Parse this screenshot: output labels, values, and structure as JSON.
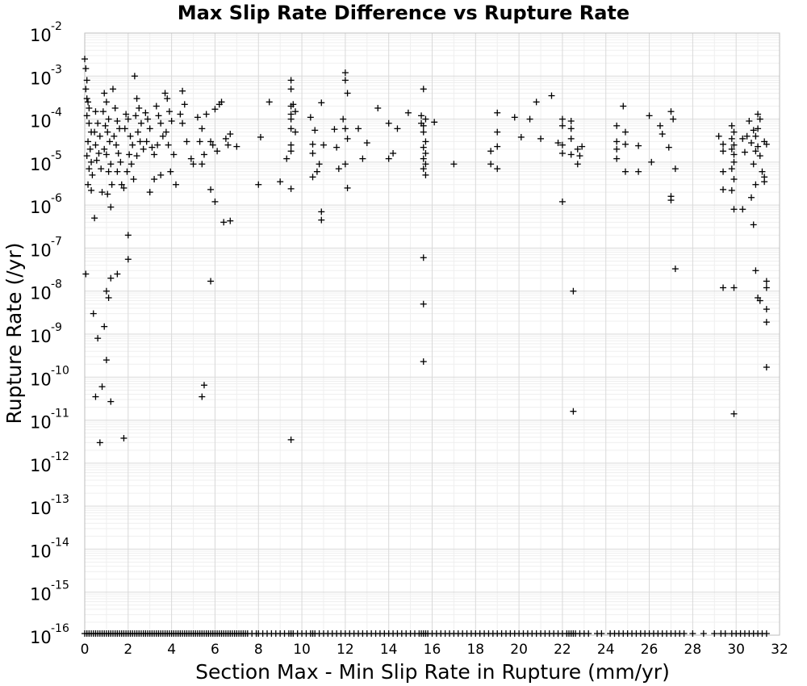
{
  "chart_data": {
    "type": "scatter",
    "title": "Max Slip Rate Difference vs Rupture Rate",
    "xlabel": "Section Max - Min Slip Rate in Rupture (mm/yr)",
    "ylabel": "Rupture Rate (/yr)",
    "xlim": [
      0,
      32
    ],
    "ylim": [
      1e-16,
      0.01
    ],
    "yscale": "log",
    "grid": true,
    "marker": "plus",
    "xticks": [
      "0",
      "2",
      "4",
      "6",
      "8",
      "10",
      "12",
      "14",
      "16",
      "18",
      "20",
      "22",
      "24",
      "26",
      "28",
      "30",
      "32"
    ],
    "yticks": [
      {
        "base": "10",
        "exp": "-16"
      },
      {
        "base": "10",
        "exp": "-15"
      },
      {
        "base": "10",
        "exp": "-14"
      },
      {
        "base": "10",
        "exp": "-13"
      },
      {
        "base": "10",
        "exp": "-12"
      },
      {
        "base": "10",
        "exp": "-11"
      },
      {
        "base": "10",
        "exp": "-10"
      },
      {
        "base": "10",
        "exp": "-9"
      },
      {
        "base": "10",
        "exp": "-8"
      },
      {
        "base": "10",
        "exp": "-7"
      },
      {
        "base": "10",
        "exp": "-6"
      },
      {
        "base": "10",
        "exp": "-5"
      },
      {
        "base": "10",
        "exp": "-4"
      },
      {
        "base": "10",
        "exp": "-3"
      },
      {
        "base": "10",
        "exp": "-2"
      }
    ],
    "points": [
      [
        0.0,
        0.0025
      ],
      [
        0.05,
        0.0015
      ],
      [
        0.1,
        0.0008
      ],
      [
        0.05,
        0.0005
      ],
      [
        0.1,
        0.0003
      ],
      [
        0.15,
        0.00025
      ],
      [
        0.2,
        0.00018
      ],
      [
        0.1,
        0.00012
      ],
      [
        0.2,
        8e-05
      ],
      [
        0.3,
        5e-05
      ],
      [
        0.15,
        3e-05
      ],
      [
        0.25,
        2e-05
      ],
      [
        0.1,
        1.4e-05
      ],
      [
        0.3,
        1e-05
      ],
      [
        0.2,
        7e-06
      ],
      [
        0.35,
        5e-06
      ],
      [
        0.15,
        3e-06
      ],
      [
        0.3,
        2.2e-06
      ],
      [
        0.5,
        0.00015
      ],
      [
        0.6,
        8e-05
      ],
      [
        0.45,
        5e-05
      ],
      [
        0.7,
        4e-05
      ],
      [
        0.5,
        2.5e-05
      ],
      [
        0.65,
        1.6e-05
      ],
      [
        0.55,
        1.1e-05
      ],
      [
        0.75,
        7e-06
      ],
      [
        0.8,
        2e-06
      ],
      [
        0.45,
        5e-07
      ],
      [
        0.9,
        0.0004
      ],
      [
        1.0,
        0.00025
      ],
      [
        0.85,
        0.00015
      ],
      [
        1.1,
        0.0001
      ],
      [
        0.95,
        7e-05
      ],
      [
        1.05,
        5e-05
      ],
      [
        1.15,
        3e-05
      ],
      [
        0.9,
        2e-05
      ],
      [
        1.0,
        1.5e-05
      ],
      [
        1.2,
        9e-06
      ],
      [
        1.1,
        6e-06
      ],
      [
        1.25,
        3e-06
      ],
      [
        1.05,
        1.8e-06
      ],
      [
        1.2,
        9e-07
      ],
      [
        1.3,
        0.0005
      ],
      [
        1.4,
        0.00018
      ],
      [
        1.5,
        9e-05
      ],
      [
        1.6,
        6e-05
      ],
      [
        1.35,
        4e-05
      ],
      [
        1.45,
        2.5e-05
      ],
      [
        1.55,
        1.6e-05
      ],
      [
        1.65,
        1e-05
      ],
      [
        1.5,
        6e-06
      ],
      [
        1.7,
        3e-06
      ],
      [
        1.8,
        2.5e-06
      ],
      [
        1.9,
        0.00013
      ],
      [
        2.0,
        0.0001
      ],
      [
        1.85,
        6e-05
      ],
      [
        2.1,
        4e-05
      ],
      [
        2.2,
        2.5e-05
      ],
      [
        2.05,
        1.5e-05
      ],
      [
        2.15,
        9e-06
      ],
      [
        1.95,
        6e-06
      ],
      [
        2.25,
        4e-06
      ],
      [
        2.3,
        0.001
      ],
      [
        2.4,
        0.0003
      ],
      [
        2.5,
        0.00018
      ],
      [
        2.35,
        0.00012
      ],
      [
        2.6,
        8e-05
      ],
      [
        2.45,
        5e-05
      ],
      [
        2.55,
        3e-05
      ],
      [
        2.7,
        2e-05
      ],
      [
        2.4,
        1.4e-05
      ],
      [
        2.8,
        0.00014
      ],
      [
        2.9,
        0.0001
      ],
      [
        3.0,
        6e-05
      ],
      [
        2.85,
        3e-05
      ],
      [
        3.1,
        2.2e-05
      ],
      [
        3.2,
        1.5e-05
      ],
      [
        3.3,
        0.0002
      ],
      [
        3.4,
        0.00012
      ],
      [
        3.5,
        8e-05
      ],
      [
        3.6,
        4e-05
      ],
      [
        3.35,
        2.5e-05
      ],
      [
        3.7,
        0.0004
      ],
      [
        3.8,
        0.0003
      ],
      [
        3.9,
        0.00015
      ],
      [
        4.0,
        9e-05
      ],
      [
        3.75,
        5e-05
      ],
      [
        3.85,
        2.5e-05
      ],
      [
        4.1,
        1.5e-05
      ],
      [
        3.95,
        6e-06
      ],
      [
        4.2,
        3e-06
      ],
      [
        3.5,
        5e-06
      ],
      [
        3.2,
        4e-06
      ],
      [
        3.0,
        2e-06
      ],
      [
        4.5,
        0.00045
      ],
      [
        4.6,
        0.00022
      ],
      [
        4.4,
        0.00013
      ],
      [
        4.5,
        8e-05
      ],
      [
        4.7,
        3e-05
      ],
      [
        4.9,
        1.2e-05
      ],
      [
        5.0,
        9e-06
      ],
      [
        5.2,
        0.00011
      ],
      [
        5.4,
        6e-05
      ],
      [
        5.3,
        3e-05
      ],
      [
        5.5,
        1.5e-05
      ],
      [
        5.4,
        9e-06
      ],
      [
        5.6,
        0.00013
      ],
      [
        5.8,
        3e-05
      ],
      [
        5.9,
        2.5e-05
      ],
      [
        6.0,
        0.00017
      ],
      [
        6.1,
        1.8e-05
      ],
      [
        6.2,
        0.00022
      ],
      [
        6.3,
        0.00025
      ],
      [
        6.5,
        3.5e-05
      ],
      [
        6.7,
        4.5e-05
      ],
      [
        6.6,
        2.5e-05
      ],
      [
        7.0,
        2.3e-05
      ],
      [
        6.4,
        4e-07
      ],
      [
        6.0,
        1.2e-06
      ],
      [
        5.8,
        2.3e-06
      ],
      [
        6.7,
        4.3e-07
      ],
      [
        0.05,
        2.5e-08
      ],
      [
        0.8,
        6e-11
      ],
      [
        1.2,
        2e-08
      ],
      [
        1.5,
        2.5e-08
      ],
      [
        1.0,
        1e-08
      ],
      [
        1.1,
        7e-09
      ],
      [
        0.4,
        3e-09
      ],
      [
        0.6,
        8e-10
      ],
      [
        0.9,
        1.5e-09
      ],
      [
        1.0,
        2.5e-10
      ],
      [
        2.0,
        2e-07
      ],
      [
        2.0,
        5.5e-08
      ],
      [
        5.8,
        1.7e-08
      ],
      [
        5.5,
        6.5e-11
      ],
      [
        5.4,
        3.5e-11
      ],
      [
        0.5,
        3.5e-11
      ],
      [
        1.2,
        2.7e-11
      ],
      [
        0.7,
        3e-12
      ],
      [
        1.8,
        3.8e-12
      ],
      [
        8.0,
        3e-06
      ],
      [
        8.1,
        3.8e-05
      ],
      [
        8.5,
        0.00025
      ],
      [
        9.0,
        3.5e-06
      ],
      [
        9.3,
        1.2e-05
      ],
      [
        9.5,
        0.0008
      ],
      [
        9.5,
        0.0005
      ],
      [
        9.5,
        0.0002
      ],
      [
        9.5,
        0.00013
      ],
      [
        9.5,
        0.0001
      ],
      [
        9.5,
        6e-05
      ],
      [
        9.5,
        2.5e-05
      ],
      [
        9.5,
        1.8e-05
      ],
      [
        9.5,
        2.4e-06
      ],
      [
        9.6,
        0.00022
      ],
      [
        9.7,
        0.00015
      ],
      [
        9.7,
        5e-05
      ],
      [
        9.5,
        3.5e-12
      ],
      [
        10.4,
        0.00011
      ],
      [
        10.6,
        5.5e-05
      ],
      [
        10.5,
        2.6e-05
      ],
      [
        10.5,
        1.6e-05
      ],
      [
        10.5,
        4.5e-06
      ],
      [
        10.7,
        6e-06
      ],
      [
        10.8,
        9e-06
      ],
      [
        10.9,
        0.00024
      ],
      [
        11.0,
        2.5e-05
      ],
      [
        10.9,
        7e-07
      ],
      [
        10.9,
        4.5e-07
      ],
      [
        11.5,
        5.8e-05
      ],
      [
        11.6,
        2.2e-05
      ],
      [
        11.7,
        7e-06
      ],
      [
        12.0,
        0.0012
      ],
      [
        12.0,
        0.0008
      ],
      [
        12.1,
        0.0004
      ],
      [
        11.9,
        0.0001
      ],
      [
        12.0,
        6e-05
      ],
      [
        12.1,
        3.5e-05
      ],
      [
        12.0,
        9e-06
      ],
      [
        12.1,
        2.5e-06
      ],
      [
        12.6,
        6e-05
      ],
      [
        12.8,
        1.2e-05
      ],
      [
        13.0,
        2.8e-05
      ],
      [
        13.5,
        0.00018
      ],
      [
        14.0,
        8e-05
      ],
      [
        14.2,
        1.6e-05
      ],
      [
        14.0,
        1.2e-05
      ],
      [
        14.4,
        6e-05
      ],
      [
        14.9,
        0.00014
      ],
      [
        15.5,
        0.00012
      ],
      [
        15.6,
        0.0005
      ],
      [
        15.7,
        0.0001
      ],
      [
        15.6,
        7e-05
      ],
      [
        15.6,
        5e-05
      ],
      [
        15.7,
        3e-05
      ],
      [
        15.6,
        2.2e-05
      ],
      [
        15.7,
        1.6e-05
      ],
      [
        15.6,
        1.2e-05
      ],
      [
        15.7,
        9e-06
      ],
      [
        15.6,
        7e-06
      ],
      [
        15.7,
        5e-06
      ],
      [
        15.5,
        8e-05
      ],
      [
        16.1,
        8.5e-05
      ],
      [
        15.6,
        6e-08
      ],
      [
        15.6,
        5e-09
      ],
      [
        15.6,
        2.3e-10
      ],
      [
        17.0,
        9e-06
      ],
      [
        18.7,
        1.8e-05
      ],
      [
        18.7,
        9e-06
      ],
      [
        19.0,
        0.00014
      ],
      [
        19.0,
        5e-05
      ],
      [
        19.0,
        2.3e-05
      ],
      [
        19.0,
        7e-06
      ],
      [
        19.8,
        0.00011
      ],
      [
        20.1,
        3.8e-05
      ],
      [
        20.5,
        0.0001
      ],
      [
        20.8,
        0.00025
      ],
      [
        21.0,
        3.5e-05
      ],
      [
        21.5,
        0.00035
      ],
      [
        21.8,
        2.8e-05
      ],
      [
        22.0,
        0.0001
      ],
      [
        22.0,
        7e-05
      ],
      [
        22.0,
        2.5e-05
      ],
      [
        22.0,
        1.6e-05
      ],
      [
        22.0,
        1.2e-06
      ],
      [
        22.4,
        9e-05
      ],
      [
        22.4,
        6e-05
      ],
      [
        22.4,
        3.5e-05
      ],
      [
        22.4,
        1.5e-05
      ],
      [
        22.5,
        1e-08
      ],
      [
        22.5,
        1.6e-11
      ],
      [
        22.7,
        2e-05
      ],
      [
        22.8,
        1.4e-05
      ],
      [
        22.7,
        9e-06
      ],
      [
        22.9,
        2.3e-05
      ],
      [
        24.5,
        7e-05
      ],
      [
        24.5,
        3e-05
      ],
      [
        24.5,
        2e-05
      ],
      [
        24.5,
        1.2e-05
      ],
      [
        24.8,
        0.0002
      ],
      [
        24.9,
        5e-05
      ],
      [
        24.9,
        2.6e-05
      ],
      [
        24.9,
        6e-06
      ],
      [
        25.5,
        2.4e-05
      ],
      [
        25.5,
        6e-06
      ],
      [
        26.0,
        0.00012
      ],
      [
        26.1,
        1e-05
      ],
      [
        26.5,
        7e-05
      ],
      [
        26.6,
        4.5e-05
      ],
      [
        26.9,
        2.2e-05
      ],
      [
        27.0,
        0.00015
      ],
      [
        27.1,
        0.0001
      ],
      [
        27.0,
        1.6e-06
      ],
      [
        27.0,
        1.3e-06
      ],
      [
        27.2,
        7e-06
      ],
      [
        27.2,
        3.3e-08
      ],
      [
        29.2,
        4e-05
      ],
      [
        29.4,
        2.6e-05
      ],
      [
        29.4,
        1.8e-05
      ],
      [
        29.4,
        6e-06
      ],
      [
        29.4,
        2.3e-06
      ],
      [
        29.4,
        1.2e-08
      ],
      [
        29.8,
        7e-05
      ],
      [
        29.9,
        5e-05
      ],
      [
        29.8,
        3.5e-05
      ],
      [
        29.9,
        2.5e-05
      ],
      [
        29.8,
        2e-05
      ],
      [
        29.9,
        1.5e-05
      ],
      [
        29.9,
        1e-05
      ],
      [
        29.8,
        7e-06
      ],
      [
        29.9,
        4e-06
      ],
      [
        29.8,
        2.2e-06
      ],
      [
        29.9,
        8e-07
      ],
      [
        29.9,
        1.2e-08
      ],
      [
        29.9,
        1.4e-11
      ],
      [
        30.3,
        3.5e-05
      ],
      [
        30.4,
        1.7e-05
      ],
      [
        30.3,
        8e-07
      ],
      [
        30.5,
        4e-05
      ],
      [
        30.6,
        9e-05
      ],
      [
        30.8,
        5.5e-05
      ],
      [
        30.9,
        4e-05
      ],
      [
        30.7,
        2.8e-05
      ],
      [
        30.9,
        1.8e-05
      ],
      [
        30.8,
        9e-06
      ],
      [
        30.9,
        3e-06
      ],
      [
        30.7,
        1.5e-06
      ],
      [
        30.8,
        3.5e-07
      ],
      [
        31.0,
        0.00013
      ],
      [
        31.1,
        0.0001
      ],
      [
        31.0,
        6e-05
      ],
      [
        31.0,
        2.3e-05
      ],
      [
        31.1,
        1.4e-05
      ],
      [
        30.9,
        3e-08
      ],
      [
        31.0,
        7e-09
      ],
      [
        31.1,
        6e-09
      ],
      [
        31.3,
        4.5e-06
      ],
      [
        31.3,
        3e-05
      ],
      [
        31.4,
        2.6e-05
      ],
      [
        31.3,
        3.5e-06
      ],
      [
        31.4,
        1.7e-08
      ],
      [
        31.4,
        1.2e-08
      ],
      [
        31.4,
        3.8e-09
      ],
      [
        31.4,
        1.9e-09
      ],
      [
        31.4,
        1.7e-10
      ],
      [
        31.2,
        6e-06
      ]
    ],
    "floor_x": [
      0.0,
      0.1,
      0.2,
      0.3,
      0.4,
      0.5,
      0.6,
      0.7,
      0.8,
      0.9,
      1.0,
      1.1,
      1.2,
      1.3,
      1.4,
      1.5,
      1.6,
      1.7,
      1.8,
      1.9,
      2.0,
      2.1,
      2.2,
      2.3,
      2.4,
      2.5,
      2.6,
      2.7,
      2.8,
      2.9,
      3.0,
      3.1,
      3.2,
      3.3,
      3.4,
      3.5,
      3.6,
      3.7,
      3.8,
      3.9,
      4.0,
      4.1,
      4.2,
      4.3,
      4.4,
      4.5,
      4.6,
      4.7,
      4.8,
      4.9,
      5.0,
      5.1,
      5.2,
      5.3,
      5.4,
      5.5,
      5.6,
      5.7,
      5.8,
      5.9,
      6.0,
      6.1,
      6.2,
      6.3,
      6.4,
      6.5,
      6.6,
      6.7,
      6.8,
      6.9,
      7.0,
      7.1,
      7.2,
      7.3,
      7.4,
      7.5,
      7.7,
      7.9,
      8.0,
      8.2,
      8.4,
      8.6,
      8.8,
      9.0,
      9.2,
      9.4,
      9.5,
      9.6,
      9.8,
      10.0,
      10.2,
      10.4,
      10.5,
      10.6,
      10.8,
      11.0,
      11.2,
      11.4,
      11.6,
      11.8,
      12.0,
      12.2,
      12.4,
      12.6,
      12.8,
      13.0,
      13.2,
      13.4,
      13.6,
      13.8,
      14.0,
      14.2,
      14.4,
      14.6,
      14.8,
      15.0,
      15.2,
      15.4,
      15.5,
      15.6,
      15.7,
      15.8,
      16.0,
      16.2,
      16.4,
      16.6,
      16.8,
      17.0,
      17.2,
      17.4,
      17.6,
      17.8,
      18.0,
      18.2,
      18.4,
      18.6,
      18.8,
      19.0,
      19.2,
      19.4,
      19.6,
      19.8,
      20.0,
      20.2,
      20.4,
      20.6,
      20.8,
      21.0,
      21.2,
      21.4,
      21.6,
      21.8,
      22.0,
      22.2,
      22.3,
      22.4,
      22.5,
      22.6,
      22.8,
      23.0,
      23.2,
      23.6,
      23.8,
      24.2,
      24.4,
      24.6,
      24.8,
      25.0,
      25.2,
      25.4,
      25.6,
      25.8,
      26.0,
      26.2,
      26.4,
      26.6,
      26.8,
      27.0,
      27.2,
      27.4,
      27.6,
      28.0,
      28.5,
      29.0,
      29.3,
      29.5,
      29.8,
      30.0,
      30.2,
      30.4,
      30.6,
      30.8,
      31.0,
      31.2,
      31.4
    ]
  }
}
